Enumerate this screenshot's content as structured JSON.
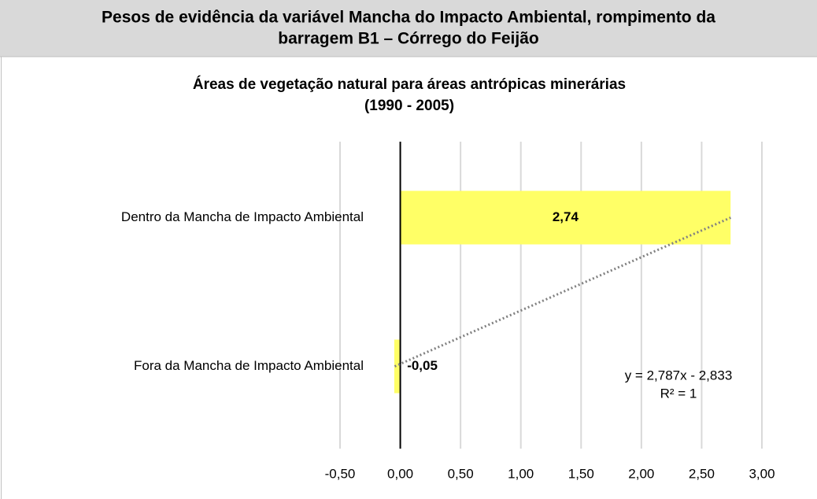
{
  "header": {
    "title_lines": [
      "Pesos de evidência da variável Mancha do Impacto Ambiental, rompimento da",
      "barragem B1 – Córrego do Feijão"
    ]
  },
  "chart_data": {
    "type": "hbar",
    "title_lines": [
      "Áreas de vegetação natural para áreas antrópicas minerárias",
      "(1990 - 2005)"
    ],
    "categories": [
      "Fora da Mancha de Impacto Ambiental",
      "Dentro da Mancha de Impacto Ambiental"
    ],
    "values": [
      -0.05,
      2.74
    ],
    "value_labels": [
      "-0,05",
      "2,74"
    ],
    "color": "#ffff66",
    "xlim": [
      -0.5,
      3.0
    ],
    "xticks": [
      {
        "value": -0.5,
        "label": "-0,50"
      },
      {
        "value": 0,
        "label": "0,00"
      },
      {
        "value": 0.5,
        "label": "0,50"
      },
      {
        "value": 1,
        "label": "1,00"
      },
      {
        "value": 1.5,
        "label": "1,50"
      },
      {
        "value": 2,
        "label": "2,00"
      },
      {
        "value": 2.5,
        "label": "2,50"
      },
      {
        "value": 3,
        "label": "3,00"
      }
    ],
    "grid": true,
    "trendline": {
      "slope": 2.787,
      "intercept": -2.833,
      "color": "#808080",
      "equation": "y = 2,787x - 2,833",
      "r2": "R² = 1"
    }
  }
}
